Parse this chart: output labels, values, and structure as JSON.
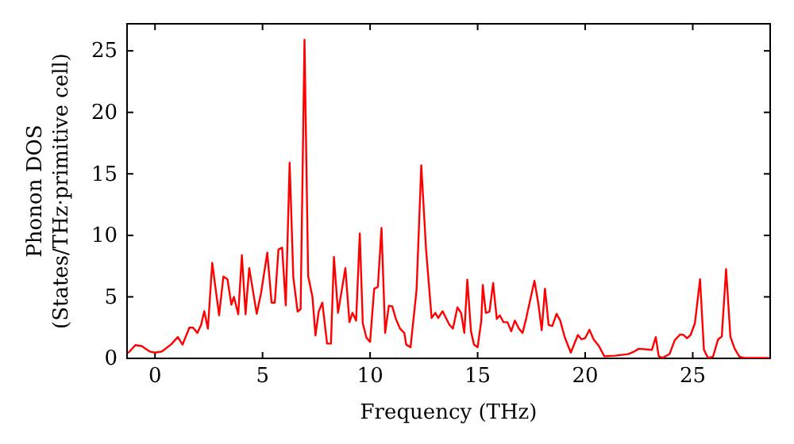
{
  "chart_data": {
    "type": "line",
    "xlabel": "Frequency (THz)",
    "ylabel": "Phonon DOS\n(States/THz·primitive cell)",
    "xlim": [
      -1.3,
      28.6
    ],
    "ylim": [
      0,
      27.2
    ],
    "xticks": [
      0,
      5,
      10,
      15,
      20,
      25
    ],
    "yticks": [
      0,
      5,
      10,
      15,
      20,
      25
    ],
    "grid": false,
    "marker": "none",
    "line_style": "solid",
    "series": [
      {
        "color": "#ff0000",
        "x": [
          -1.23,
          -0.91,
          -0.62,
          -0.25,
          0,
          0.32,
          0.74,
          1.06,
          1.28,
          1.6,
          1.77,
          1.97,
          2.14,
          2.29,
          2.46,
          2.66,
          2.98,
          3.18,
          3.37,
          3.55,
          3.67,
          3.87,
          4.04,
          4.21,
          4.38,
          4.73,
          4.93,
          5.22,
          5.42,
          5.57,
          5.74,
          5.91,
          6.08,
          6.26,
          6.43,
          6.63,
          6.77,
          6.95,
          7.12,
          7.32,
          7.46,
          7.61,
          7.78,
          8.0,
          8.18,
          8.32,
          8.51,
          8.85,
          9.04,
          9.18,
          9.35,
          9.52,
          9.66,
          9.83,
          10.0,
          10.19,
          10.36,
          10.53,
          10.7,
          10.87,
          11.03,
          11.2,
          11.39,
          11.59,
          11.68,
          11.88,
          12.16,
          12.38,
          12.6,
          12.86,
          13.03,
          13.17,
          13.37,
          13.68,
          13.85,
          14.06,
          14.23,
          14.38,
          14.52,
          14.69,
          14.83,
          15.0,
          15.17,
          15.24,
          15.38,
          15.55,
          15.72,
          15.89,
          16.03,
          16.2,
          16.39,
          16.56,
          16.73,
          16.92,
          17.09,
          17.26,
          17.64,
          17.81,
          17.98,
          18.13,
          18.3,
          18.47,
          18.67,
          18.84,
          19.04,
          19.33,
          19.66,
          19.83,
          20.0,
          20.2,
          20.39,
          20.64,
          20.89,
          21.38,
          22.0,
          22.24,
          22.49,
          23.1,
          23.28,
          23.42,
          23.6,
          23.92,
          24.16,
          24.41,
          24.58,
          24.73,
          24.9,
          25.1,
          25.34,
          25.52,
          25.71,
          25.94,
          26.18,
          26.35,
          26.55,
          26.75,
          26.95,
          27.17,
          27.41,
          28.52
        ],
        "values": [
          0.47,
          1.08,
          1.0,
          0.56,
          0.47,
          0.56,
          1.12,
          1.73,
          1.12,
          2.5,
          2.5,
          2.07,
          2.7,
          3.84,
          2.42,
          7.77,
          3.5,
          6.65,
          6.43,
          4.36,
          5.0,
          3.58,
          8.38,
          3.58,
          7.34,
          3.62,
          5.3,
          8.6,
          4.53,
          4.53,
          8.85,
          9.0,
          4.3,
          15.9,
          6.6,
          3.8,
          4.0,
          25.9,
          6.7,
          5.0,
          1.86,
          3.8,
          4.53,
          1.2,
          1.2,
          8.25,
          3.7,
          7.34,
          2.94,
          3.7,
          3.07,
          10.15,
          2.85,
          1.68,
          1.34,
          5.66,
          5.8,
          10.6,
          2.07,
          4.27,
          4.23,
          3.2,
          2.42,
          2.07,
          1.12,
          0.9,
          5.57,
          15.7,
          8.9,
          3.28,
          3.7,
          3.28,
          3.84,
          2.76,
          2.42,
          4.14,
          3.7,
          2.07,
          6.4,
          2.2,
          1.12,
          0.9,
          3.07,
          5.97,
          3.7,
          3.8,
          6.13,
          3.2,
          3.5,
          2.94,
          2.94,
          2.2,
          3.07,
          2.42,
          2.07,
          3.28,
          6.3,
          4.58,
          2.29,
          5.66,
          2.72,
          2.63,
          3.62,
          3.07,
          1.77,
          0.47,
          1.9,
          1.55,
          1.64,
          2.33,
          1.55,
          1.0,
          0.17,
          0.22,
          0.35,
          0.52,
          0.78,
          0.69,
          1.73,
          0.17,
          0.04,
          0.35,
          1.47,
          1.94,
          1.9,
          1.64,
          1.9,
          2.85,
          6.43,
          0.69,
          0.04,
          0.13,
          1.55,
          1.77,
          7.25,
          1.77,
          0.78,
          0.13,
          0.04,
          0.04
        ]
      }
    ]
  }
}
